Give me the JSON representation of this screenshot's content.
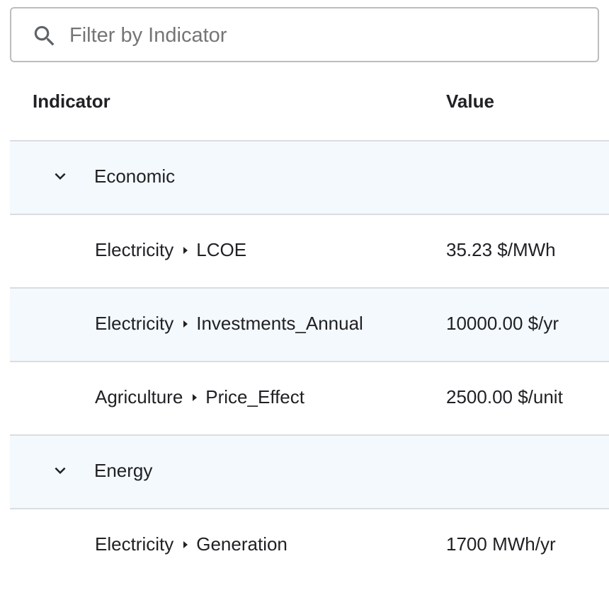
{
  "search": {
    "placeholder": "Filter by Indicator",
    "value": ""
  },
  "table": {
    "columns": {
      "indicator": "Indicator",
      "value": "Value"
    },
    "groups": [
      {
        "label": "Economic",
        "expanded": true,
        "rows": [
          {
            "category": "Electricity",
            "indicator": "LCOE",
            "value": "35.23 $/MWh"
          },
          {
            "category": "Electricity",
            "indicator": "Investments_Annual",
            "value": "10000.00 $/yr"
          },
          {
            "category": "Agriculture",
            "indicator": "Price_Effect",
            "value": "2500.00 $/unit"
          }
        ]
      },
      {
        "label": "Energy",
        "expanded": true,
        "rows": [
          {
            "category": "Electricity",
            "indicator": "Generation",
            "value": "1700 MWh/yr"
          }
        ]
      }
    ]
  },
  "icons": {
    "search": "search-icon",
    "expand": "chevron-down-icon",
    "separator": "caret-right-icon"
  },
  "colors": {
    "shaded_row": "#f4f9fd",
    "border": "#dadce0",
    "placeholder": "#757575",
    "text": "#202124"
  }
}
